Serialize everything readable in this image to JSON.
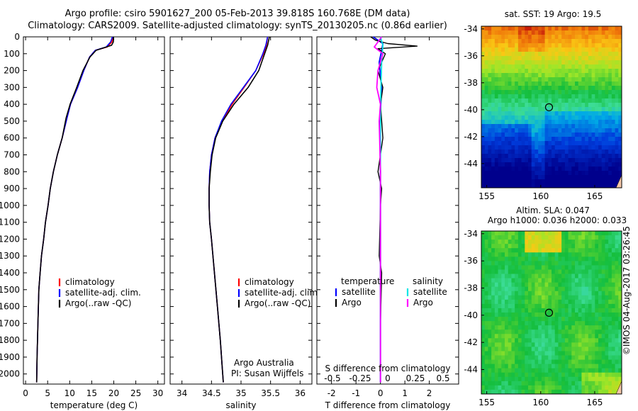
{
  "title": {
    "line1": "Argo profile: csiro 5901627_200 05-Feb-2013 39.818S 160.768E (DM data)",
    "line2": "Climatology: CARS2009. Satellite-adjusted climatology: synTS_20130205.nc (0.86d earlier)"
  },
  "credits": {
    "org": "Argo Australia",
    "pi": "PI: Susan Wijffels",
    "stamp": "©IMOS 04-Aug-2017 03:26:45"
  },
  "colors": {
    "climatology": "#ff0000",
    "satellite": "#0000ff",
    "argo": "#000000",
    "salinity_satellite": "#00e5e5",
    "salinity_argo": "#ff00ff"
  },
  "chart_data": [
    {
      "type": "line",
      "id": "temperature",
      "xlabel": "temperature (deg C)",
      "ylabel": "",
      "xlim": [
        -0.5,
        31.5
      ],
      "ylim": [
        2060,
        0
      ],
      "xticks": [
        0,
        5,
        10,
        15,
        20,
        25,
        30
      ],
      "yticks": [
        0,
        100,
        200,
        300,
        400,
        500,
        600,
        700,
        800,
        900,
        1000,
        1100,
        1200,
        1300,
        1400,
        1500,
        1600,
        1700,
        1800,
        1900,
        2000
      ],
      "legend": [
        "climatology",
        "satellite-adj. clim.",
        "Argo(..raw -QC)"
      ],
      "series": [
        {
          "name": "climatology",
          "x": [
            19.8,
            19.6,
            18.5,
            15.8,
            14.5,
            13.2,
            11.8,
            10.2,
            9.4,
            8.3,
            7.2,
            6.3,
            5.6,
            5.1,
            4.5,
            4.1,
            3.6,
            3.3,
            3.0,
            2.8,
            2.6,
            2.5
          ],
          "y": [
            0,
            30,
            60,
            80,
            120,
            200,
            300,
            400,
            480,
            600,
            700,
            800,
            900,
            1000,
            1100,
            1200,
            1300,
            1400,
            1500,
            1700,
            1900,
            2050
          ]
        },
        {
          "name": "satellite-adj. clim.",
          "x": [
            19.7,
            19.3,
            18.3,
            15.8,
            14.5,
            13.2,
            11.8,
            10.2,
            9.4,
            8.3,
            7.2,
            6.3,
            5.6,
            5.1,
            4.5,
            4.1,
            3.6,
            3.3,
            3.0,
            2.8,
            2.6,
            2.5
          ],
          "y": [
            0,
            30,
            60,
            80,
            120,
            200,
            300,
            400,
            480,
            600,
            700,
            800,
            900,
            1000,
            1100,
            1200,
            1300,
            1400,
            1500,
            1700,
            1900,
            2050
          ]
        },
        {
          "name": "Argo(..raw -QC)",
          "x": [
            19.9,
            19.9,
            19.5,
            16.0,
            14.6,
            13.0,
            11.6,
            10.1,
            9.2,
            8.3,
            7.2,
            6.3,
            5.6,
            5.1,
            4.5,
            4.1,
            3.6,
            3.3,
            3.0,
            2.8,
            2.6,
            2.5
          ],
          "y": [
            0,
            30,
            50,
            80,
            120,
            200,
            300,
            400,
            480,
            600,
            700,
            800,
            900,
            1000,
            1100,
            1200,
            1300,
            1400,
            1500,
            1700,
            1900,
            2050
          ]
        }
      ]
    },
    {
      "type": "line",
      "id": "salinity",
      "xlabel": "salinity",
      "ylabel": "",
      "xlim": [
        33.8,
        36.2
      ],
      "ylim": [
        2060,
        0
      ],
      "xticks": [
        34,
        34.5,
        35,
        35.5,
        36
      ],
      "xtick_labels": [
        "34",
        "34.5",
        "35",
        "35.5",
        "36"
      ],
      "legend": [
        "climatology",
        "satellite-adj. clim.",
        "Argo(..raw -QC)"
      ],
      "series": [
        {
          "name": "climatology",
          "x": [
            35.45,
            35.43,
            35.38,
            35.25,
            35.05,
            34.85,
            34.68,
            34.56,
            34.5,
            34.47,
            34.46,
            34.46,
            34.47,
            34.5,
            34.55,
            34.6,
            34.65,
            34.68,
            34.7
          ],
          "y": [
            0,
            50,
            100,
            200,
            300,
            400,
            500,
            600,
            700,
            800,
            900,
            1000,
            1100,
            1200,
            1400,
            1600,
            1800,
            1950,
            2050
          ]
        },
        {
          "name": "satellite-adj. clim.",
          "x": [
            35.45,
            35.42,
            35.37,
            35.25,
            35.04,
            34.83,
            34.67,
            34.56,
            34.5,
            34.47,
            34.46,
            34.46,
            34.47,
            34.5,
            34.55,
            34.6,
            34.65,
            34.68,
            34.7
          ],
          "y": [
            0,
            50,
            100,
            200,
            300,
            400,
            500,
            600,
            700,
            800,
            900,
            1000,
            1100,
            1200,
            1400,
            1600,
            1800,
            1950,
            2050
          ]
        },
        {
          "name": "Argo(..raw -QC)",
          "x": [
            35.48,
            35.45,
            35.4,
            35.3,
            35.12,
            34.88,
            34.69,
            34.57,
            34.51,
            34.48,
            34.46,
            34.46,
            34.47,
            34.5,
            34.55,
            34.6,
            34.65,
            34.68,
            34.7
          ],
          "y": [
            0,
            50,
            100,
            200,
            300,
            400,
            500,
            600,
            700,
            800,
            900,
            1000,
            1100,
            1200,
            1400,
            1600,
            1800,
            1950,
            2050
          ]
        }
      ]
    },
    {
      "type": "line",
      "id": "difference",
      "xlabel": "T difference from climatology",
      "xlabel_top": "S difference from climatology",
      "xlim": [
        -2.6,
        3.2
      ],
      "ylim": [
        2060,
        0
      ],
      "xticks": [
        -2,
        -1,
        0,
        1,
        2
      ],
      "xticks_s": [
        -0.5,
        -0.25,
        0,
        0.25,
        0.5
      ],
      "xtick_labels_s": [
        "-0.5",
        "-0.25",
        "0",
        "0.25",
        "0.5"
      ],
      "legend_left_title": "temperature",
      "legend_right_title": "salinity",
      "legend_left": [
        "satellite",
        "Argo"
      ],
      "legend_right": [
        "satellite",
        "Argo"
      ],
      "series": [
        {
          "name": "temperature satellite",
          "x": [
            -0.3,
            0.1,
            0.05,
            -0.05,
            0.05,
            -0.02,
            0.0,
            0.0,
            0.0,
            0.0,
            0.0
          ],
          "y": [
            0,
            40,
            80,
            150,
            300,
            500,
            800,
            1100,
            1500,
            1800,
            2050
          ]
        },
        {
          "name": "temperature Argo",
          "x": [
            -0.4,
            -0.2,
            0.3,
            1.5,
            -0.1,
            0.2,
            -0.1,
            0.1,
            0.0,
            0.1,
            -0.1,
            0.05,
            0.0,
            -0.05,
            0.05,
            0.0,
            0.0
          ],
          "y": [
            0,
            20,
            40,
            55,
            70,
            100,
            200,
            300,
            400,
            600,
            800,
            900,
            1000,
            1300,
            1400,
            1700,
            2050
          ]
        },
        {
          "name": "salinity satellite",
          "x": [
            0.0,
            0.1,
            0.05,
            0.0,
            0.0,
            0.0,
            0.0
          ],
          "y": [
            0,
            50,
            150,
            400,
            800,
            1400,
            2050
          ]
        },
        {
          "name": "salinity Argo",
          "x": [
            0.05,
            -0.25,
            0.1,
            -0.1,
            -0.15,
            0.0,
            -0.05,
            0.0,
            0.0
          ],
          "y": [
            0,
            60,
            100,
            200,
            300,
            400,
            500,
            800,
            2050
          ]
        }
      ]
    },
    {
      "type": "heatmap",
      "id": "sst-map",
      "title": "sat. SST: 19 Argo: 19.5",
      "xlim": [
        154.5,
        167.5
      ],
      "ylim": [
        -45.8,
        -33.8
      ],
      "xticks": [
        155,
        160,
        165
      ],
      "yticks": [
        -34,
        -36,
        -38,
        -40,
        -42,
        -44
      ],
      "marker": {
        "lon": 160.768,
        "lat": -39.818
      }
    },
    {
      "type": "heatmap",
      "id": "sla-map",
      "title_line1": "Altim. SLA: 0.047",
      "title_line2": "Argo h1000: 0.036 h2000: 0.033",
      "xlim": [
        154.5,
        167.5
      ],
      "ylim": [
        -45.8,
        -33.8
      ],
      "xticks": [
        155,
        160,
        165
      ],
      "yticks": [
        -34,
        -36,
        -38,
        -40,
        -42,
        -44
      ],
      "marker": {
        "lon": 160.768,
        "lat": -39.818
      }
    }
  ]
}
